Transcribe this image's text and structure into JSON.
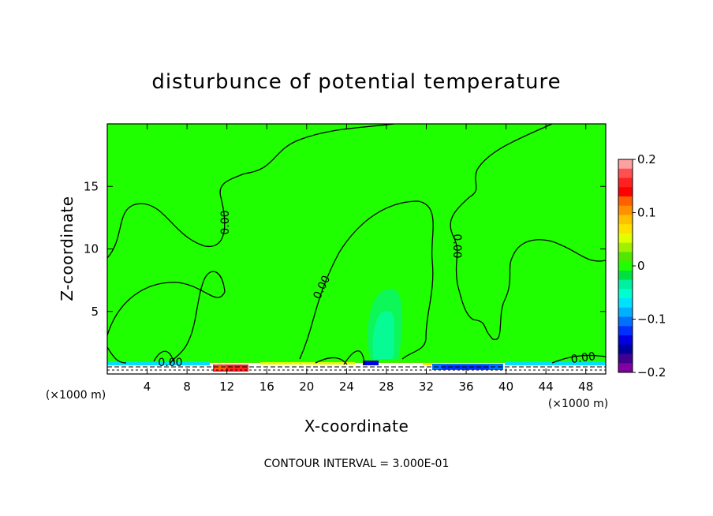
{
  "chart_data": {
    "type": "heatmap",
    "title": "disturbunce of potential temperature",
    "xlabel": "X-coordinate",
    "ylabel": "Z-coordinate",
    "x_unit_left": "(×1000 m)",
    "x_unit_right": "(×1000 m)",
    "xlim": [
      0,
      50
    ],
    "ylim": [
      0,
      20
    ],
    "x_ticks": [
      4,
      8,
      12,
      16,
      20,
      24,
      28,
      32,
      36,
      40,
      44,
      48
    ],
    "y_ticks": [
      5,
      10,
      15
    ],
    "field_background_value": 0,
    "contour_label": "0.00",
    "contour_interval_text": "CONTOUR INTERVAL = 3.000E-01",
    "colorbar": {
      "min": -0.2,
      "max": 0.2,
      "tick_labels": [
        "0.2",
        "0.1",
        "0",
        "−0.1",
        "−0.2"
      ],
      "tick_values": [
        0.2,
        0.1,
        0,
        -0.1,
        -0.2
      ],
      "colors": [
        "#ffa0a0",
        "#ff5050",
        "#ff2020",
        "#ff0000",
        "#ff6000",
        "#ff9000",
        "#ffc000",
        "#ffe000",
        "#e0ff00",
        "#a0f000",
        "#50e800",
        "#20ff00",
        "#00e040",
        "#00f0a0",
        "#00ffd0",
        "#00e0ff",
        "#00b0ff",
        "#0070ff",
        "#0030ff",
        "#0000e0",
        "#0000a0",
        "#400090",
        "#8000a0"
      ]
    },
    "features": [
      {
        "label": "cold anomaly plume",
        "x": 27.5,
        "z_top": 6.8,
        "value": -0.05
      },
      {
        "label": "warm surface anomaly",
        "x_range": [
          10,
          14
        ],
        "z": 0.5,
        "value": 0.15
      },
      {
        "label": "cold surface anomaly",
        "x_range": [
          33,
          40
        ],
        "z": 0.5,
        "value": -0.15
      }
    ]
  }
}
